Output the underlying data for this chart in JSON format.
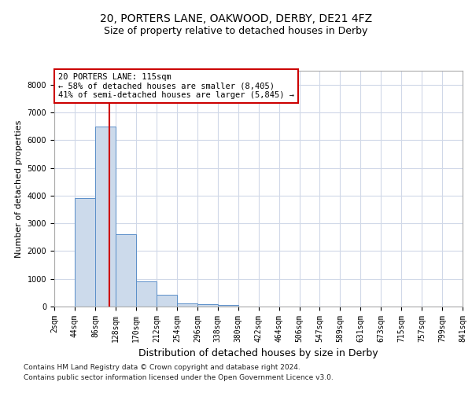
{
  "title1": "20, PORTERS LANE, OAKWOOD, DERBY, DE21 4FZ",
  "title2": "Size of property relative to detached houses in Derby",
  "xlabel": "Distribution of detached houses by size in Derby",
  "ylabel": "Number of detached properties",
  "footer1": "Contains HM Land Registry data © Crown copyright and database right 2024.",
  "footer2": "Contains public sector information licensed under the Open Government Licence v3.0.",
  "annotation_title": "20 PORTERS LANE: 115sqm",
  "annotation_line1": "← 58% of detached houses are smaller (8,405)",
  "annotation_line2": "41% of semi-detached houses are larger (5,845) →",
  "bar_color": "#ccdaeb",
  "bar_edge_color": "#5b8fc9",
  "grid_color": "#d0d8e8",
  "vline_color": "#cc0000",
  "annotation_box_edge": "#cc0000",
  "tick_labels": [
    "2sqm",
    "44sqm",
    "86sqm",
    "128sqm",
    "170sqm",
    "212sqm",
    "254sqm",
    "296sqm",
    "338sqm",
    "380sqm",
    "422sqm",
    "464sqm",
    "506sqm",
    "547sqm",
    "589sqm",
    "631sqm",
    "673sqm",
    "715sqm",
    "757sqm",
    "799sqm",
    "841sqm"
  ],
  "bar_values": [
    5,
    3900,
    6500,
    2600,
    900,
    420,
    120,
    80,
    50,
    10,
    5,
    2,
    1,
    1,
    0,
    0,
    0,
    0,
    0,
    0
  ],
  "bar_left_edges": [
    2,
    44,
    86,
    128,
    170,
    212,
    254,
    296,
    338,
    380,
    422,
    464,
    506,
    547,
    589,
    631,
    673,
    715,
    757,
    799
  ],
  "bin_width": 42,
  "vline_x": 115,
  "ylim": [
    0,
    8500
  ],
  "xlim": [
    2,
    841
  ],
  "yticks": [
    0,
    1000,
    2000,
    3000,
    4000,
    5000,
    6000,
    7000,
    8000
  ],
  "tick_positions": [
    2,
    44,
    86,
    128,
    170,
    212,
    254,
    296,
    338,
    380,
    422,
    464,
    506,
    547,
    589,
    631,
    673,
    715,
    757,
    799,
    841
  ],
  "background_color": "#ffffff",
  "title1_fontsize": 10,
  "title2_fontsize": 9,
  "xlabel_fontsize": 9,
  "ylabel_fontsize": 8,
  "tick_fontsize": 7,
  "footer_fontsize": 6.5,
  "ann_fontsize": 7.5
}
